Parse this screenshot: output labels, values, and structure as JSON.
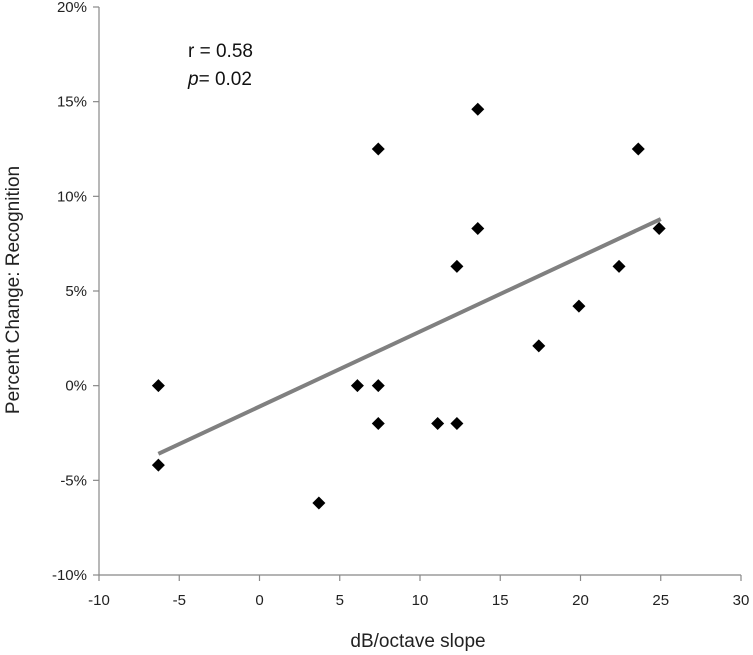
{
  "chart_data": {
    "type": "scatter",
    "title": "",
    "xlabel": "dB/octave slope",
    "ylabel": "Percent Change: Recognition",
    "xlim": [
      -10,
      30
    ],
    "ylim": [
      -10,
      20
    ],
    "xticks": [
      -10,
      -5,
      0,
      5,
      10,
      15,
      20,
      25,
      30
    ],
    "xtick_labels": [
      "-10",
      "-5",
      "0",
      "5",
      "10",
      "15",
      "20",
      "25",
      "30"
    ],
    "yticks": [
      -10,
      -5,
      0,
      5,
      10,
      15,
      20
    ],
    "ytick_labels": [
      "-10%",
      "-5%",
      "0%",
      "5%",
      "10%",
      "15%",
      "20%"
    ],
    "grid": false,
    "legend": false,
    "marker": "diamond",
    "marker_color": "#000000",
    "points": [
      {
        "x": -6.3,
        "y": 0.0
      },
      {
        "x": -6.3,
        "y": -4.2
      },
      {
        "x": 3.7,
        "y": -6.2
      },
      {
        "x": 6.1,
        "y": 0.0
      },
      {
        "x": 7.4,
        "y": 12.5
      },
      {
        "x": 7.4,
        "y": 0.0
      },
      {
        "x": 7.4,
        "y": -2.0
      },
      {
        "x": 11.1,
        "y": -2.0
      },
      {
        "x": 12.3,
        "y": 6.3
      },
      {
        "x": 12.3,
        "y": -2.0
      },
      {
        "x": 13.6,
        "y": 14.6
      },
      {
        "x": 13.6,
        "y": 8.3
      },
      {
        "x": 17.4,
        "y": 2.1
      },
      {
        "x": 19.9,
        "y": 4.2
      },
      {
        "x": 22.4,
        "y": 6.3
      },
      {
        "x": 23.6,
        "y": 12.5
      },
      {
        "x": 24.9,
        "y": 8.3
      }
    ],
    "trendline": {
      "x": [
        -6.3,
        25.0
      ],
      "y": [
        -3.6,
        8.8
      ],
      "color": "#808080"
    },
    "annotations": {
      "r_text": "r = 0.58",
      "p_symbol": "p",
      "p_value": "= 0.02"
    }
  }
}
